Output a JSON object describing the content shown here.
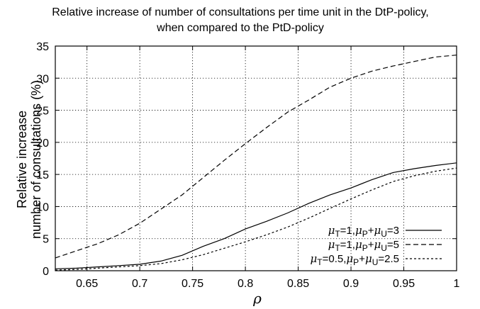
{
  "chart_data": {
    "type": "line",
    "title_lines": [
      "Relative increase of number of consultations per time unit in the DtP-policy,",
      "when compared to the PtD-policy"
    ],
    "xlabel": "ρ",
    "ylabel_lines": [
      "Relative increase",
      "number of consultations (%)"
    ],
    "xlim": [
      0.62,
      1.0
    ],
    "ylim": [
      0,
      35
    ],
    "xticks": [
      0.65,
      0.7,
      0.75,
      0.8,
      0.85,
      0.9,
      0.95,
      1
    ],
    "yticks": [
      0,
      5,
      10,
      15,
      20,
      25,
      30,
      35
    ],
    "grid": true,
    "legend_position": "bottom-right",
    "series": [
      {
        "name": "μT=1,μP+μU=3",
        "legend": [
          {
            "t": "μ",
            "math": true
          },
          {
            "t": "T",
            "sub": true
          },
          {
            "t": "=1,"
          },
          {
            "t": "μ",
            "math": true
          },
          {
            "t": "P",
            "sub": true
          },
          {
            "t": "+"
          },
          {
            "t": "μ",
            "math": true
          },
          {
            "t": "U",
            "sub": true
          },
          {
            "t": "=3"
          }
        ],
        "dash": "",
        "x": [
          0.62,
          0.64,
          0.66,
          0.68,
          0.7,
          0.72,
          0.74,
          0.76,
          0.78,
          0.8,
          0.82,
          0.84,
          0.86,
          0.88,
          0.9,
          0.92,
          0.94,
          0.96,
          0.98,
          1.0
        ],
        "y": [
          0.3,
          0.4,
          0.6,
          0.8,
          1.0,
          1.5,
          2.4,
          3.8,
          5.0,
          6.5,
          7.7,
          9.0,
          10.5,
          11.8,
          12.9,
          14.2,
          15.3,
          15.9,
          16.4,
          16.8
        ]
      },
      {
        "name": "μT=1,μP+μU=5",
        "legend": [
          {
            "t": "μ",
            "math": true
          },
          {
            "t": "T",
            "sub": true
          },
          {
            "t": "=1,"
          },
          {
            "t": "μ",
            "math": true
          },
          {
            "t": "P",
            "sub": true
          },
          {
            "t": "+"
          },
          {
            "t": "μ",
            "math": true
          },
          {
            "t": "U",
            "sub": true
          },
          {
            "t": "=5"
          }
        ],
        "dash": "7 4",
        "x": [
          0.62,
          0.64,
          0.66,
          0.68,
          0.7,
          0.72,
          0.74,
          0.76,
          0.78,
          0.8,
          0.82,
          0.84,
          0.86,
          0.88,
          0.9,
          0.92,
          0.94,
          0.96,
          0.98,
          1.0
        ],
        "y": [
          2.0,
          3.1,
          4.2,
          5.6,
          7.4,
          9.6,
          11.8,
          14.5,
          17.2,
          19.8,
          22.3,
          24.7,
          26.6,
          28.6,
          30.0,
          31.1,
          31.9,
          32.6,
          33.3,
          33.6
        ]
      },
      {
        "name": "μT=0.5,μP+μU=2.5",
        "legend": [
          {
            "t": "μ",
            "math": true
          },
          {
            "t": "T",
            "sub": true
          },
          {
            "t": "=0.5,"
          },
          {
            "t": "μ",
            "math": true
          },
          {
            "t": "P",
            "sub": true
          },
          {
            "t": "+"
          },
          {
            "t": "μ",
            "math": true
          },
          {
            "t": "U",
            "sub": true
          },
          {
            "t": "=2.5"
          }
        ],
        "dash": "3 3",
        "x": [
          0.62,
          0.64,
          0.66,
          0.68,
          0.7,
          0.72,
          0.74,
          0.76,
          0.78,
          0.8,
          0.82,
          0.84,
          0.86,
          0.88,
          0.9,
          0.92,
          0.94,
          0.96,
          0.98,
          1.0
        ],
        "y": [
          0.1,
          0.2,
          0.4,
          0.6,
          0.8,
          1.1,
          1.7,
          2.5,
          3.5,
          4.5,
          5.6,
          6.8,
          8.2,
          9.7,
          11.2,
          12.6,
          13.9,
          14.8,
          15.5,
          16.0
        ]
      }
    ]
  }
}
